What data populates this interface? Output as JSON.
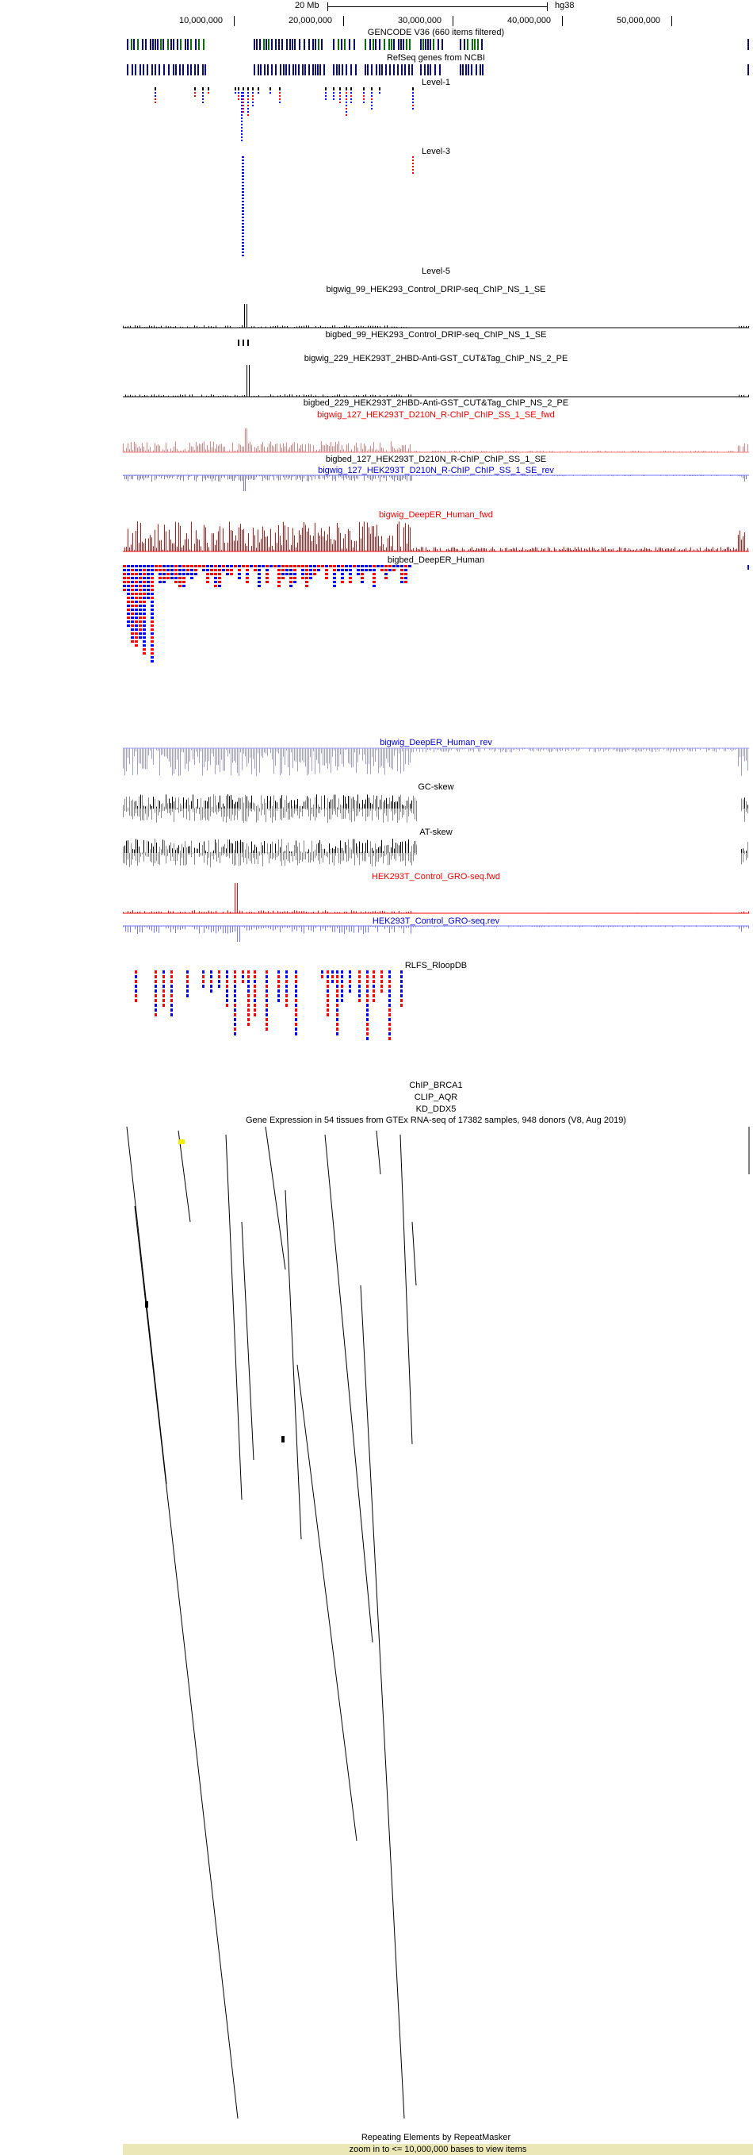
{
  "ruler": {
    "scale_label": "20 Mb",
    "assembly": "hg38",
    "ticks": [
      "10,000,000",
      "20,000,000",
      "30,000,000",
      "40,000,000",
      "50,000,000"
    ]
  },
  "tracks": {
    "gencode": "GENCODE V36 (660 items filtered)",
    "refseq": "RefSeq genes from NCBI",
    "level1": "Level-1",
    "level3": "Level-3",
    "level5": "Level-5",
    "bigwig_99": "bigwig_99_HEK293_Control_DRIP-seq_ChIP_NS_1_SE",
    "bigbed_99": "bigbed_99_HEK293_Control_DRIP-seq_ChIP_NS_1_SE",
    "bigwig_229": "bigwig_229_HEK293T_2HBD-Anti-GST_CUT&Tag_ChIP_NS_2_PE",
    "bigbed_229": "bigbed_229_HEK293T_2HBD-Anti-GST_CUT&Tag_ChIP_NS_2_PE",
    "bigwig_127_fwd": "bigwig_127_HEK293T_D210N_R-ChIP_ChIP_SS_1_SE_fwd",
    "bigbed_127": "bigbed_127_HEK293T_D210N_R-ChIP_ChIP_SS_1_SE",
    "bigwig_127_rev": "bigwig_127_HEK293T_D210N_R-ChIP_ChIP_SS_1_SE_rev",
    "deeper_fwd": "bigwig_DeepER_Human_fwd",
    "deeper_bed": "bigbed_DeepER_Human",
    "deeper_rev": "bigwig_DeepER_Human_rev",
    "gc_skew": "GC-skew",
    "at_skew": "AT-skew",
    "gro_fwd": "HEK293T_Control_GRO-seq.fwd",
    "gro_rev": "HEK293T_Control_GRO-seq.rev",
    "rlfs": "RLFS_RloopDB",
    "chip_brca1": "ChIP_BRCA1",
    "clip_aqr": "CLIP_AQR",
    "kd_ddx5": "KD_DDX5",
    "gtex": "Gene Expression in 54 tissues from GTEx RNA-seq of 17382 samples, 948 donors (V8, Aug 2019)",
    "repeatmasker": "Repeating Elements by RepeatMasker",
    "zoom_note": "zoom in to <= 10,000,000 bases to view items"
  },
  "colors": {
    "fwd": "#ff0000",
    "rev": "#0000ff",
    "gene_navy": "#0a0a6e",
    "gene_green": "#0b6e0b",
    "repeat_bar": "#ece7b7"
  }
}
